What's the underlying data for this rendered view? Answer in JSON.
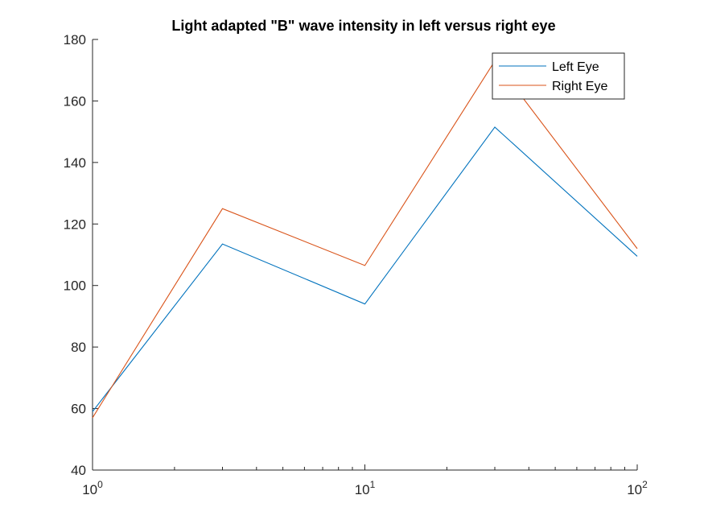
{
  "chart_data": {
    "type": "line",
    "title": "Light adapted \"B\" wave intensity in left versus right eye",
    "xlabel": "",
    "ylabel": "",
    "xscale": "log",
    "xlim": [
      1,
      100
    ],
    "ylim": [
      40,
      180
    ],
    "x": [
      1,
      3,
      10,
      30,
      100
    ],
    "x_tick_labels": [
      {
        "value": 1,
        "base": "10",
        "exp": "0"
      },
      {
        "value": 10,
        "base": "10",
        "exp": "1"
      },
      {
        "value": 100,
        "base": "10",
        "exp": "2"
      }
    ],
    "y_ticks": [
      40,
      60,
      80,
      100,
      120,
      140,
      160,
      180
    ],
    "series": [
      {
        "name": "Left Eye",
        "color": "#0072BD",
        "values": [
          59,
          113.5,
          94,
          151.5,
          109.5
        ]
      },
      {
        "name": "Right Eye",
        "color": "#D95319",
        "values": [
          57,
          125,
          106.5,
          173,
          112
        ]
      }
    ],
    "grid": false,
    "legend_position": "top-right"
  }
}
